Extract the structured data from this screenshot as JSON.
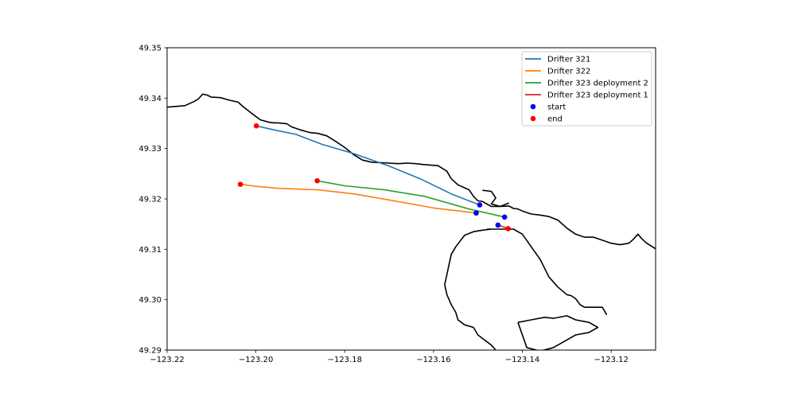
{
  "chart_data": {
    "type": "line",
    "title": "",
    "xlabel": "",
    "ylabel": "",
    "xlim": [
      -123.22,
      -123.11
    ],
    "ylim": [
      49.29,
      49.35
    ],
    "xticks": [
      -123.22,
      -123.2,
      -123.18,
      -123.16,
      -123.14,
      -123.12
    ],
    "xtick_labels": [
      "−123.22",
      "−123.20",
      "−123.18",
      "−123.16",
      "−123.14",
      "−123.12"
    ],
    "yticks": [
      49.29,
      49.3,
      49.31,
      49.32,
      49.33,
      49.34,
      49.35
    ],
    "ytick_labels": [
      "49.29",
      "49.30",
      "49.31",
      "49.32",
      "49.33",
      "49.34",
      "49.35"
    ],
    "grid": false,
    "legend_position": "top-right",
    "series": [
      {
        "name": "Drifter 321",
        "color": "#1f77b4",
        "x": [
          -123.1496,
          -123.156,
          -123.163,
          -123.17,
          -123.178,
          -123.185,
          -123.191,
          -123.196,
          -123.1999
        ],
        "y": [
          49.3188,
          49.321,
          49.324,
          49.3265,
          49.329,
          49.3308,
          49.3328,
          49.3337,
          49.3345
        ]
      },
      {
        "name": "Drifter 322",
        "color": "#ff7f0e",
        "x": [
          -123.1504,
          -123.16,
          -123.17,
          -123.178,
          -123.186,
          -123.195,
          -123.2,
          -123.2035
        ],
        "y": [
          49.3172,
          49.3182,
          49.3198,
          49.321,
          49.3218,
          49.3221,
          49.3225,
          49.3229
        ]
      },
      {
        "name": "Drifter 323 deployment 2",
        "color": "#2ca02c",
        "x": [
          -123.144,
          -123.152,
          -123.162,
          -123.171,
          -123.18,
          -123.1862
        ],
        "y": [
          49.3164,
          49.318,
          49.3205,
          49.3218,
          49.3226,
          49.3236
        ]
      },
      {
        "name": "Drifter 323 deployment 1",
        "color": "#d62728",
        "x": [
          -123.1455,
          -123.144,
          -123.1432
        ],
        "y": [
          49.3148,
          49.3144,
          49.3141
        ]
      }
    ],
    "markers": [
      {
        "name": "start",
        "color": "#0000ff",
        "x": [
          -123.1496,
          -123.1504,
          -123.144,
          -123.1455
        ],
        "y": [
          49.3188,
          49.3172,
          49.3164,
          49.3148
        ]
      },
      {
        "name": "end",
        "color": "#ff0000",
        "x": [
          -123.1999,
          -123.2035,
          -123.1862,
          -123.1432
        ],
        "y": [
          49.3345,
          49.3229,
          49.3236,
          49.3141
        ]
      }
    ],
    "coastlines": [
      {
        "x": [
          -123.22,
          -123.216,
          -123.214,
          -123.213,
          -123.212,
          -123.211,
          -123.21,
          -123.208,
          -123.206,
          -123.204,
          -123.203,
          -123.202,
          -123.201,
          -123.199,
          -123.197,
          -123.196,
          -123.195,
          -123.193,
          -123.192,
          -123.19,
          -123.188,
          -123.186,
          -123.184,
          -123.182,
          -123.18,
          -123.178,
          -123.176,
          -123.174,
          -123.172,
          -123.17,
          -123.168,
          -123.166,
          -123.164,
          -123.162,
          -123.159,
          -123.157,
          -123.156,
          -123.1545,
          -123.153,
          -123.152,
          -123.151,
          -123.15,
          -123.149,
          -123.147,
          -123.145,
          -123.143,
          -123.142,
          -123.141,
          -123.14,
          -123.139,
          -123.138,
          -123.136,
          -123.134,
          -123.132,
          -123.13,
          -123.128,
          -123.126,
          -123.124,
          -123.122,
          -123.12,
          -123.118,
          -123.116,
          -123.115,
          -123.114,
          -123.113,
          -123.112,
          -123.11
        ],
        "y": [
          49.3382,
          49.3385,
          49.3393,
          49.3398,
          49.3408,
          49.3406,
          49.3402,
          49.3401,
          49.3396,
          49.3392,
          49.3384,
          49.3377,
          49.337,
          49.3357,
          49.3352,
          49.3351,
          49.3351,
          49.3349,
          49.3343,
          49.3337,
          49.3332,
          49.333,
          49.3325,
          49.3314,
          49.3302,
          49.3288,
          49.3277,
          49.3273,
          49.3272,
          49.3271,
          49.327,
          49.3271,
          49.327,
          49.3268,
          49.3266,
          49.3255,
          49.324,
          49.3228,
          49.3222,
          49.3218,
          49.3205,
          49.3196,
          49.3195,
          49.3185,
          49.3185,
          49.3186,
          49.3181,
          49.318,
          49.3176,
          49.3173,
          49.317,
          49.3168,
          49.3165,
          49.3158,
          49.3142,
          49.313,
          49.3124,
          49.3124,
          49.3118,
          49.3112,
          49.3109,
          49.3112,
          49.312,
          49.313,
          49.312,
          49.3112,
          49.3101
        ]
      },
      {
        "x": [
          -123.149,
          -123.147,
          -123.146,
          -123.147,
          -123.145,
          -123.143
        ],
        "y": [
          49.3217,
          49.3215,
          49.3202,
          49.319,
          49.3185,
          49.3192
        ]
      },
      {
        "x": [
          -123.148,
          -123.142,
          -123.14,
          -123.138,
          -123.136,
          -123.134,
          -123.132,
          -123.13,
          -123.129,
          -123.128,
          -123.127,
          -123.126,
          -123.125,
          -123.122,
          -123.121
        ],
        "y": [
          49.314,
          49.314,
          49.313,
          49.3105,
          49.308,
          49.3045,
          49.3025,
          49.301,
          49.3008,
          49.3002,
          49.299,
          49.2985,
          49.2985,
          49.2985,
          49.297
        ]
      },
      {
        "x": [
          -123.147,
          -123.149,
          -123.151,
          -123.153,
          -123.155,
          -123.156,
          -123.1565,
          -123.157,
          -123.1575,
          -123.157,
          -123.156,
          -123.155,
          -123.1545,
          -123.153,
          -123.151,
          -123.15,
          -123.147,
          -123.146
        ],
        "y": [
          49.314,
          49.3138,
          49.3135,
          49.3128,
          49.3105,
          49.309,
          49.307,
          49.305,
          49.303,
          49.301,
          49.299,
          49.2975,
          49.296,
          49.295,
          49.2945,
          49.293,
          49.291,
          49.29
        ]
      },
      {
        "x": [
          -123.141,
          -123.138,
          -123.135,
          -123.133,
          -123.13,
          -123.128,
          -123.125,
          -123.123,
          -123.125,
          -123.128,
          -123.13,
          -123.133,
          -123.136,
          -123.139,
          -123.141
        ],
        "y": [
          49.2955,
          49.296,
          49.2965,
          49.2963,
          49.2968,
          49.296,
          49.2955,
          49.2945,
          49.2935,
          49.293,
          49.292,
          49.2905,
          49.2898,
          49.2905,
          49.2955
        ]
      }
    ],
    "legend_entries": [
      "Drifter 321",
      "Drifter 322",
      "Drifter 323 deployment 2",
      "Drifter 323 deployment 1",
      "start",
      "end"
    ]
  }
}
